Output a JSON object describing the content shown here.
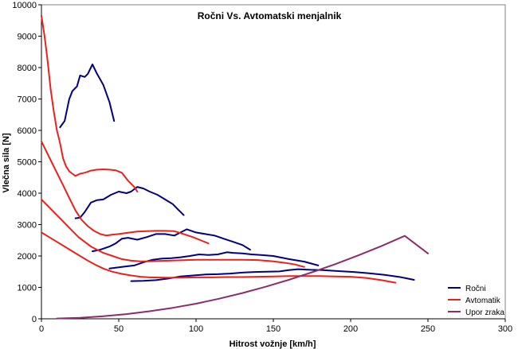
{
  "chart_data": {
    "type": "line",
    "title": "Ročni Vs. Avtomatski menjalnik",
    "xlabel": "Hitrost vožnje [km/h]",
    "ylabel": "Vlečna sila [N]",
    "xlim": [
      0,
      300
    ],
    "ylim": [
      0,
      10000
    ],
    "x_ticks": [
      0,
      50,
      100,
      150,
      200,
      250,
      300
    ],
    "y_ticks": [
      0,
      1000,
      2000,
      3000,
      4000,
      5000,
      6000,
      7000,
      8000,
      9000,
      10000
    ],
    "grid": false,
    "legend_position": "bottom-right",
    "legend": [
      {
        "label": "Ročni",
        "color": "#000080"
      },
      {
        "label": "Avtomatik",
        "color": "#e8221c"
      },
      {
        "label": "Upor zraka",
        "color": "#8b2d6a"
      }
    ],
    "series": [
      {
        "name": "Ročni",
        "color": "#000080",
        "x": [
          12,
          15,
          18,
          20,
          23,
          25,
          28,
          30,
          33,
          36,
          40,
          44,
          47
        ],
        "y": [
          6100,
          6300,
          7000,
          7250,
          7400,
          7750,
          7700,
          7800,
          8100,
          7800,
          7450,
          6900,
          6300
        ]
      },
      {
        "name": "Ročni",
        "color": "#000080",
        "x": [
          22,
          25,
          28,
          32,
          36,
          40,
          45,
          50,
          55,
          58,
          62,
          66,
          70,
          75,
          80,
          85,
          88,
          92
        ],
        "y": [
          3200,
          3220,
          3400,
          3700,
          3780,
          3800,
          3950,
          4050,
          4000,
          4050,
          4200,
          4150,
          4050,
          3950,
          3800,
          3650,
          3500,
          3300
        ]
      },
      {
        "name": "Ročni",
        "color": "#000080",
        "x": [
          33,
          38,
          44,
          48,
          52,
          56,
          62,
          68,
          74,
          80,
          86,
          90,
          94,
          100,
          106,
          112,
          118,
          124,
          130,
          135
        ],
        "y": [
          2150,
          2200,
          2300,
          2400,
          2550,
          2580,
          2520,
          2600,
          2700,
          2700,
          2650,
          2750,
          2850,
          2750,
          2700,
          2650,
          2550,
          2450,
          2350,
          2200
        ]
      },
      {
        "name": "Ročni",
        "color": "#000080",
        "x": [
          44,
          52,
          60,
          66,
          72,
          78,
          84,
          90,
          96,
          102,
          108,
          114,
          120,
          124,
          130,
          136,
          142,
          150,
          160,
          170,
          179
        ],
        "y": [
          1600,
          1650,
          1700,
          1800,
          1880,
          1920,
          1930,
          1960,
          2000,
          2050,
          2030,
          2050,
          2120,
          2100,
          2080,
          2050,
          2030,
          2000,
          1900,
          1820,
          1700
        ]
      },
      {
        "name": "Ročni",
        "color": "#000080",
        "x": [
          58,
          66,
          74,
          82,
          90,
          98,
          106,
          114,
          122,
          130,
          138,
          146,
          154,
          160,
          166,
          174,
          182,
          192,
          202,
          212,
          222,
          232,
          241
        ],
        "y": [
          1200,
          1210,
          1230,
          1280,
          1350,
          1380,
          1410,
          1420,
          1440,
          1470,
          1490,
          1500,
          1510,
          1550,
          1580,
          1560,
          1550,
          1520,
          1490,
          1450,
          1400,
          1330,
          1240
        ]
      },
      {
        "name": "Avtomatik",
        "color": "#e8221c",
        "x": [
          0,
          2,
          4,
          6,
          8,
          10,
          12,
          14,
          16,
          18,
          20,
          22,
          25,
          28,
          32,
          36,
          40,
          44,
          48,
          52,
          56,
          60,
          62
        ],
        "y": [
          9650,
          9000,
          8200,
          7300,
          6600,
          6000,
          5600,
          5100,
          4850,
          4700,
          4620,
          4550,
          4620,
          4650,
          4720,
          4750,
          4760,
          4750,
          4730,
          4650,
          4400,
          4200,
          4050
        ]
      },
      {
        "name": "Avtomatik",
        "color": "#e8221c",
        "x": [
          0,
          3,
          6,
          10,
          14,
          18,
          22,
          26,
          30,
          34,
          38,
          42,
          46,
          50,
          56,
          62,
          68,
          74,
          80,
          86,
          92,
          98,
          104,
          108
        ],
        "y": [
          5650,
          5350,
          5050,
          4650,
          4250,
          3850,
          3450,
          3150,
          2950,
          2800,
          2700,
          2650,
          2680,
          2700,
          2740,
          2780,
          2790,
          2800,
          2800,
          2790,
          2700,
          2600,
          2480,
          2400
        ]
      },
      {
        "name": "Avtomatik",
        "color": "#e8221c",
        "x": [
          0,
          4,
          8,
          12,
          16,
          20,
          24,
          28,
          32,
          36,
          40,
          46,
          52,
          58,
          64,
          70,
          76,
          82,
          88,
          94,
          100,
          110,
          120,
          130,
          140,
          150,
          158,
          164,
          170
        ],
        "y": [
          3800,
          3600,
          3400,
          3200,
          3000,
          2800,
          2600,
          2450,
          2300,
          2200,
          2100,
          2000,
          1900,
          1850,
          1830,
          1830,
          1840,
          1850,
          1860,
          1870,
          1880,
          1880,
          1880,
          1880,
          1870,
          1830,
          1780,
          1730,
          1650
        ]
      },
      {
        "name": "Avtomatik",
        "color": "#e8221c",
        "x": [
          0,
          5,
          10,
          15,
          20,
          25,
          30,
          35,
          40,
          46,
          52,
          58,
          64,
          70,
          80,
          90,
          100,
          110,
          120,
          130,
          140,
          150,
          160,
          170,
          180,
          190,
          200,
          210,
          220,
          229
        ],
        "y": [
          2750,
          2600,
          2450,
          2300,
          2150,
          2000,
          1850,
          1720,
          1600,
          1500,
          1430,
          1380,
          1340,
          1320,
          1310,
          1310,
          1320,
          1320,
          1330,
          1330,
          1340,
          1350,
          1360,
          1360,
          1360,
          1350,
          1340,
          1300,
          1230,
          1150
        ]
      },
      {
        "name": "Upor zraka",
        "color": "#8b2d6a",
        "x": [
          10,
          25,
          40,
          55,
          70,
          85,
          100,
          115,
          130,
          145,
          160,
          175,
          190,
          205,
          220,
          235,
          250
        ],
        "y": [
          10,
          30,
          80,
          150,
          240,
          350,
          480,
          640,
          820,
          1020,
          1240,
          1480,
          1740,
          2020,
          2320,
          2640,
          2080
        ]
      }
    ]
  }
}
